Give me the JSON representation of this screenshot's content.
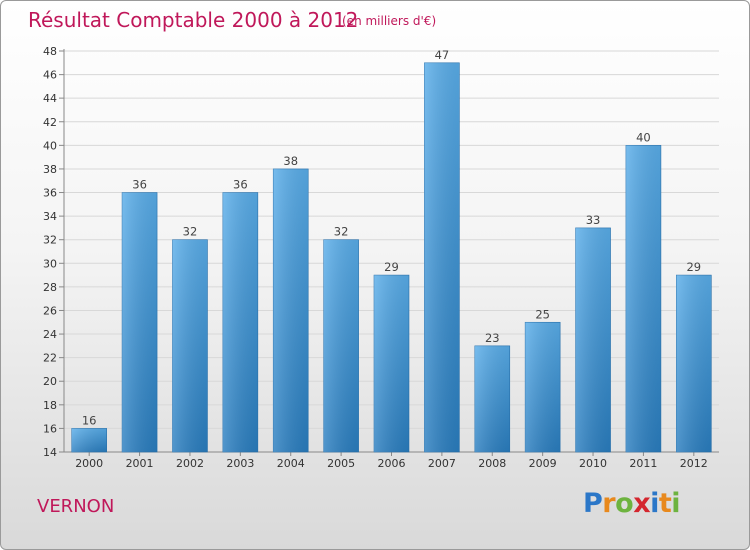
{
  "title": "Résultat Comptable 2000 à 2012",
  "subtitle": "(en milliers d'€)",
  "city": "VERNON",
  "logo": {
    "letters": [
      {
        "ch": "P",
        "color": "#2b77c8"
      },
      {
        "ch": "r",
        "color": "#e8891d"
      },
      {
        "ch": "o",
        "color": "#6db33f"
      },
      {
        "ch": "x",
        "color": "#d4262e"
      },
      {
        "ch": "i",
        "color": "#2b77c8"
      },
      {
        "ch": "t",
        "color": "#e8891d"
      },
      {
        "ch": "i",
        "color": "#6db33f"
      }
    ]
  },
  "colors": {
    "title": "#c0185a",
    "bar_light": "#5aaeea",
    "bar_dark": "#2a7ec0"
  },
  "chart_data": {
    "type": "bar",
    "title": "Résultat Comptable 2000 à 2012",
    "subtitle": "(en milliers d'€)",
    "categories": [
      "2000",
      "2001",
      "2002",
      "2003",
      "2004",
      "2005",
      "2006",
      "2007",
      "2008",
      "2009",
      "2010",
      "2011",
      "2012"
    ],
    "values": [
      16,
      36,
      32,
      36,
      38,
      32,
      29,
      47,
      23,
      25,
      33,
      40,
      29
    ],
    "ylim": [
      14,
      48
    ],
    "yticks": [
      14,
      16,
      18,
      20,
      22,
      24,
      26,
      28,
      30,
      32,
      34,
      36,
      38,
      40,
      42,
      44,
      46,
      48
    ],
    "grid": true,
    "data_labels": true
  }
}
